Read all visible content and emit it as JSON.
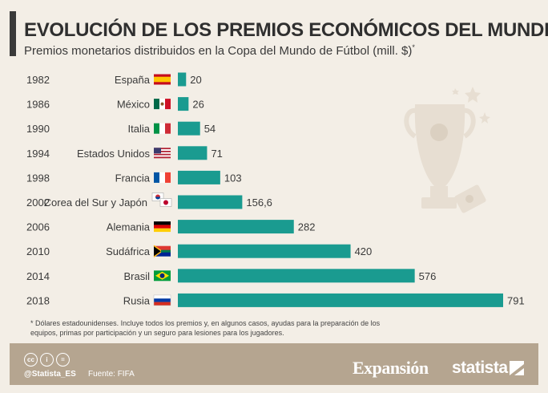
{
  "header": {
    "title": "EVOLUCIÓN DE LOS PREMIOS ECONÓMICOS DEL MUNDIAL",
    "subtitle": "Premios monetarios distribuidos en la Copa del Mundo de Fútbol (mill. $)",
    "subtitle_mark": "*"
  },
  "chart_data": {
    "type": "bar",
    "orientation": "horizontal",
    "categories": [
      "1982",
      "1986",
      "1990",
      "1994",
      "1998",
      "2002",
      "2006",
      "2010",
      "2014",
      "2018"
    ],
    "hosts": [
      "España",
      "México",
      "Italia",
      "Estados Unidos",
      "Francia",
      "Corea del Sur y Japón",
      "Alemania",
      "Sudáfrica",
      "Brasil",
      "Rusia"
    ],
    "values": [
      20,
      26,
      54,
      71,
      103,
      156.6,
      282,
      420,
      576,
      791
    ],
    "value_labels": [
      "20",
      "26",
      "54",
      "71",
      "103",
      "156,6",
      "282",
      "420",
      "576",
      "791"
    ],
    "flags": [
      "spain-flag-icon",
      "mexico-flag-icon",
      "italy-flag-icon",
      "usa-flag-icon",
      "france-flag-icon",
      "korea-japan-flag-icon",
      "germany-flag-icon",
      "south-africa-flag-icon",
      "brazil-flag-icon",
      "russia-flag-icon"
    ],
    "xlim": [
      0,
      791
    ],
    "grid": false,
    "bar_color": "#1a9b90",
    "decoration": "trophy-icon"
  },
  "footnote": "* Dólares estadounidenses. Incluye todos los premios y, en algunos casos, ayudas para la preparación de los equipos, primas por participación y un seguro para lesiones para los jugadores.",
  "footer": {
    "license_icons": [
      "cc-icon",
      "by-icon",
      "nd-icon"
    ],
    "license_glyphs": [
      "cc",
      "i",
      "="
    ],
    "handle": "@Statista_ES",
    "source": "Fuente: FIFA",
    "brand_1": "Expansión",
    "brand_2": "statista",
    "background": "#b5a590"
  }
}
